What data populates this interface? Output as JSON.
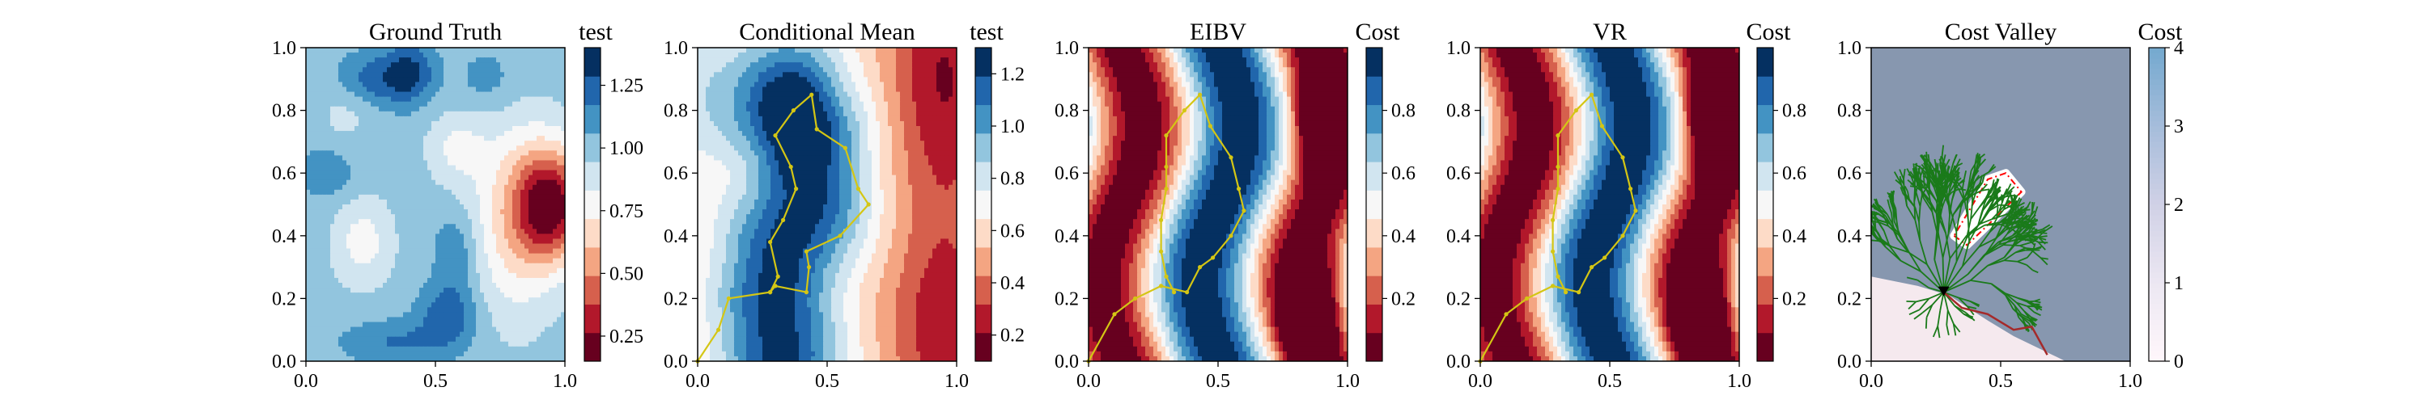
{
  "chart_data": [
    {
      "type": "heatmap",
      "title": "Ground Truth",
      "colorbar_label": "test",
      "cmap": "RdBu",
      "discrete_levels": true,
      "xlim": [
        0.0,
        1.0
      ],
      "ylim": [
        0.0,
        1.0
      ],
      "x_ticks": [
        "0.0",
        "0.5",
        "1.0"
      ],
      "y_ticks": [
        "0.0",
        "0.2",
        "0.4",
        "0.6",
        "0.8",
        "1.0"
      ],
      "colorbar_range": [
        0.15,
        1.4
      ],
      "colorbar_ticks": [
        "0.25",
        "0.50",
        "0.75",
        "1.00",
        "1.25"
      ],
      "colorbar_tick_values": [
        0.25,
        0.5,
        0.75,
        1.0,
        1.25
      ],
      "field": {
        "background": 1.0,
        "blobs": [
          {
            "x": 0.95,
            "y": 0.5,
            "sx": 0.1,
            "sy": 0.13,
            "a": -0.75
          },
          {
            "x": 0.8,
            "y": 0.45,
            "sx": 0.12,
            "sy": 0.22,
            "a": -0.3
          },
          {
            "x": 0.22,
            "y": 0.38,
            "sx": 0.08,
            "sy": 0.1,
            "a": -0.22
          },
          {
            "x": 0.58,
            "y": 0.68,
            "sx": 0.08,
            "sy": 0.08,
            "a": -0.18
          },
          {
            "x": 0.15,
            "y": 0.8,
            "sx": 0.07,
            "sy": 0.08,
            "a": -0.1
          },
          {
            "x": 0.4,
            "y": 0.92,
            "sx": 0.07,
            "sy": 0.07,
            "a": 0.3
          },
          {
            "x": 0.25,
            "y": 0.9,
            "sx": 0.1,
            "sy": 0.06,
            "a": 0.22
          },
          {
            "x": 0.55,
            "y": 0.15,
            "sx": 0.08,
            "sy": 0.07,
            "a": 0.25
          },
          {
            "x": 0.35,
            "y": 0.06,
            "sx": 0.15,
            "sy": 0.05,
            "a": 0.18
          },
          {
            "x": 0.58,
            "y": 0.35,
            "sx": 0.06,
            "sy": 0.09,
            "a": 0.18
          },
          {
            "x": 0.08,
            "y": 0.6,
            "sx": 0.08,
            "sy": 0.06,
            "a": 0.15
          },
          {
            "x": 0.7,
            "y": 0.9,
            "sx": 0.08,
            "sy": 0.07,
            "a": 0.12
          }
        ]
      }
    },
    {
      "type": "heatmap",
      "title": "Conditional Mean",
      "colorbar_label": "test",
      "cmap": "RdBu",
      "discrete_levels": true,
      "xlim": [
        0.0,
        1.0
      ],
      "ylim": [
        0.0,
        1.0
      ],
      "x_ticks": [
        "0.0",
        "0.5",
        "1.0"
      ],
      "y_ticks": [
        "0.0",
        "0.2",
        "0.4",
        "0.6",
        "0.8",
        "1.0"
      ],
      "colorbar_range": [
        0.1,
        1.3
      ],
      "colorbar_ticks": [
        "0.2",
        "0.4",
        "0.6",
        "0.8",
        "1.0",
        "1.2"
      ],
      "colorbar_tick_values": [
        0.2,
        0.4,
        0.6,
        0.8,
        1.0,
        1.2
      ],
      "field": {
        "background": 0.55,
        "blobs": [
          {
            "x": 0.0,
            "y": 0.85,
            "sx": 0.12,
            "sy": 0.2,
            "a": 0.2
          },
          {
            "x": 0.95,
            "y": 0.9,
            "sx": 0.15,
            "sy": 0.3,
            "a": -0.35
          },
          {
            "x": 0.95,
            "y": 0.1,
            "sx": 0.15,
            "sy": 0.25,
            "a": -0.3
          }
        ],
        "ridge": {
          "points": [
            [
              0.32,
              0.02
            ],
            [
              0.3,
              0.2
            ],
            [
              0.33,
              0.35
            ],
            [
              0.42,
              0.5
            ],
            [
              0.42,
              0.7
            ],
            [
              0.35,
              0.82
            ]
          ],
          "sigma": 0.17,
          "a": 0.7
        },
        "ridge_peak": {
          "x": 0.38,
          "y": 0.75,
          "sx": 0.09,
          "sy": 0.1,
          "a": 0.2
        }
      },
      "path": [
        [
          0.0,
          0.0
        ],
        [
          0.08,
          0.1
        ],
        [
          0.12,
          0.2
        ],
        [
          0.28,
          0.22
        ],
        [
          0.3,
          0.24
        ],
        [
          0.42,
          0.22
        ],
        [
          0.43,
          0.3
        ],
        [
          0.42,
          0.35
        ],
        [
          0.55,
          0.4
        ],
        [
          0.66,
          0.5
        ],
        [
          0.62,
          0.55
        ],
        [
          0.57,
          0.68
        ],
        [
          0.46,
          0.74
        ],
        [
          0.44,
          0.85
        ],
        [
          0.37,
          0.8
        ],
        [
          0.3,
          0.72
        ],
        [
          0.36,
          0.62
        ],
        [
          0.38,
          0.55
        ],
        [
          0.33,
          0.45
        ],
        [
          0.28,
          0.38
        ],
        [
          0.31,
          0.27
        ],
        [
          0.28,
          0.22
        ]
      ]
    },
    {
      "type": "heatmap",
      "title": "EIBV",
      "colorbar_label": "Cost",
      "cmap": "RdBu",
      "discrete_levels": true,
      "xlim": [
        0.0,
        1.0
      ],
      "ylim": [
        0.0,
        1.0
      ],
      "x_ticks": [
        "0.0",
        "0.5",
        "1.0"
      ],
      "y_ticks": [
        "0.0",
        "0.2",
        "0.4",
        "0.6",
        "0.8",
        "1.0"
      ],
      "colorbar_range": [
        0.0,
        1.0
      ],
      "colorbar_ticks": [
        "0.2",
        "0.4",
        "0.6",
        "0.8"
      ],
      "colorbar_tick_values": [
        0.2,
        0.4,
        0.6,
        0.8
      ],
      "field": "wave",
      "path": [
        [
          0.0,
          0.0
        ],
        [
          0.1,
          0.15
        ],
        [
          0.18,
          0.2
        ],
        [
          0.28,
          0.24
        ],
        [
          0.38,
          0.22
        ],
        [
          0.43,
          0.3
        ],
        [
          0.48,
          0.33
        ],
        [
          0.55,
          0.4
        ],
        [
          0.6,
          0.48
        ],
        [
          0.58,
          0.55
        ],
        [
          0.55,
          0.65
        ],
        [
          0.47,
          0.75
        ],
        [
          0.43,
          0.85
        ],
        [
          0.37,
          0.8
        ],
        [
          0.3,
          0.72
        ],
        [
          0.3,
          0.62
        ],
        [
          0.3,
          0.55
        ],
        [
          0.28,
          0.45
        ],
        [
          0.28,
          0.35
        ],
        [
          0.3,
          0.27
        ],
        [
          0.33,
          0.22
        ]
      ]
    },
    {
      "type": "heatmap",
      "title": "VR",
      "colorbar_label": "Cost",
      "cmap": "RdBu",
      "discrete_levels": true,
      "xlim": [
        0.0,
        1.0
      ],
      "ylim": [
        0.0,
        1.0
      ],
      "x_ticks": [
        "0.0",
        "0.5",
        "1.0"
      ],
      "y_ticks": [
        "0.0",
        "0.2",
        "0.4",
        "0.6",
        "0.8",
        "1.0"
      ],
      "colorbar_range": [
        0.0,
        1.0
      ],
      "colorbar_ticks": [
        "0.2",
        "0.4",
        "0.6",
        "0.8"
      ],
      "colorbar_tick_values": [
        0.2,
        0.4,
        0.6,
        0.8
      ],
      "field": "wave",
      "path": [
        [
          0.0,
          0.0
        ],
        [
          0.1,
          0.15
        ],
        [
          0.18,
          0.2
        ],
        [
          0.28,
          0.24
        ],
        [
          0.38,
          0.22
        ],
        [
          0.43,
          0.3
        ],
        [
          0.48,
          0.33
        ],
        [
          0.55,
          0.4
        ],
        [
          0.6,
          0.48
        ],
        [
          0.58,
          0.55
        ],
        [
          0.55,
          0.65
        ],
        [
          0.47,
          0.75
        ],
        [
          0.43,
          0.85
        ],
        [
          0.37,
          0.8
        ],
        [
          0.3,
          0.72
        ],
        [
          0.3,
          0.62
        ],
        [
          0.3,
          0.55
        ],
        [
          0.28,
          0.45
        ],
        [
          0.28,
          0.35
        ],
        [
          0.3,
          0.27
        ],
        [
          0.33,
          0.22
        ]
      ]
    },
    {
      "type": "heatmap",
      "title": "Cost Valley",
      "colorbar_label": "Cost",
      "cmap": "PuBu",
      "xlim": [
        0.0,
        1.0
      ],
      "ylim": [
        0.0,
        1.0
      ],
      "x_ticks": [
        "0.0",
        "0.5",
        "1.0"
      ],
      "y_ticks": [
        "0.0",
        "0.2",
        "0.4",
        "0.6",
        "0.8",
        "1.0"
      ],
      "colorbar_range": [
        0,
        4
      ],
      "colorbar_ticks": [
        "0",
        "1",
        "2",
        "3",
        "4"
      ],
      "colorbar_tick_values": [
        0,
        1,
        2,
        3,
        4
      ],
      "background_color": "#8797af",
      "low_cost_region": [
        [
          0.0,
          0.0
        ],
        [
          0.0,
          0.27
        ],
        [
          0.18,
          0.24
        ],
        [
          0.3,
          0.21
        ],
        [
          0.45,
          0.13
        ],
        [
          0.55,
          0.08
        ],
        [
          0.7,
          0.02
        ],
        [
          0.75,
          0.0
        ]
      ],
      "obstacle_polygon": [
        [
          0.32,
          0.4
        ],
        [
          0.37,
          0.37
        ],
        [
          0.47,
          0.45
        ],
        [
          0.58,
          0.54
        ],
        [
          0.52,
          0.6
        ],
        [
          0.45,
          0.58
        ]
      ],
      "obstacle_color": "#ff0000",
      "tree_color": "#1a7a1a",
      "tree_root": [
        0.28,
        0.22
      ],
      "planned_path": [
        [
          0.28,
          0.22
        ],
        [
          0.35,
          0.17
        ],
        [
          0.45,
          0.15
        ],
        [
          0.55,
          0.1
        ],
        [
          0.62,
          0.11
        ],
        [
          0.68,
          0.02
        ]
      ],
      "planned_path_color": "#a52a2a",
      "current_location_marker": "black-triangle"
    }
  ],
  "colors": {
    "rdbu": [
      "#67001f",
      "#b2182b",
      "#d6604d",
      "#f4a582",
      "#fddbc7",
      "#f7f7f7",
      "#d1e5f0",
      "#92c5de",
      "#4393c3",
      "#2166ac",
      "#053061"
    ],
    "path": "#d4c614",
    "pubu": [
      "#fff7fb",
      "#ece7f2",
      "#d0d1e6",
      "#a6bddb",
      "#74a9cf"
    ]
  }
}
